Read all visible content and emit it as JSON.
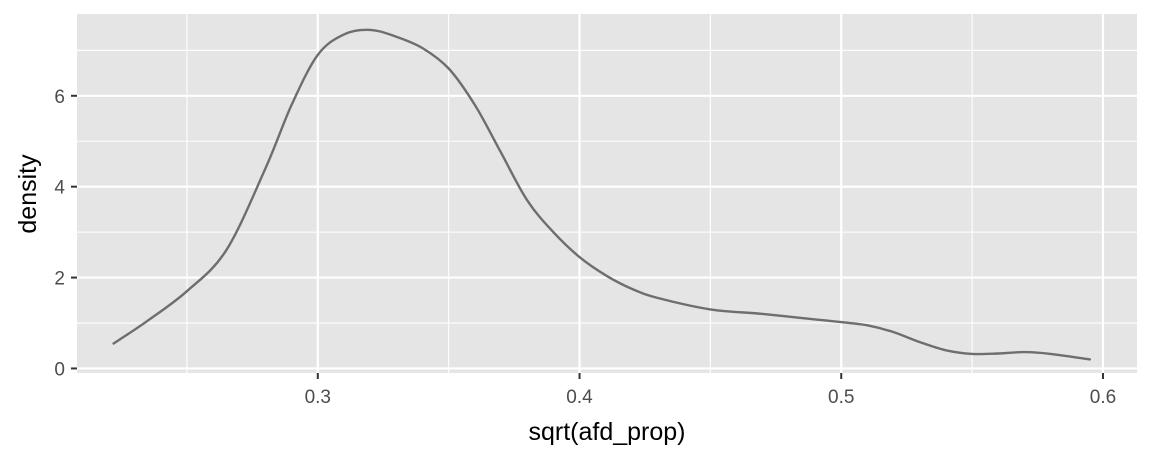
{
  "chart_data": {
    "type": "line",
    "title": "",
    "xlabel": "sqrt(afd_prop)",
    "ylabel": "density",
    "xlim": [
      0.208,
      0.613
    ],
    "ylim": [
      -0.1,
      7.8
    ],
    "x_ticks": [
      0.3,
      0.4,
      0.5,
      0.6
    ],
    "x_minor_ticks": [
      0.25,
      0.35,
      0.45,
      0.55
    ],
    "y_ticks": [
      0,
      2,
      4,
      6
    ],
    "y_minor_ticks": [
      1,
      3,
      5,
      7
    ],
    "x_tick_labels": [
      "0.3",
      "0.4",
      "0.5",
      "0.6"
    ],
    "y_tick_labels": [
      "0",
      "2",
      "4",
      "6"
    ],
    "grid": true,
    "legend": "none",
    "colors": {
      "panel": "#e5e5e5",
      "grid": "#ffffff",
      "line": "#6e6e6e"
    },
    "series": [
      {
        "x": [
          0.222,
          0.235,
          0.25,
          0.265,
          0.28,
          0.29,
          0.3,
          0.31,
          0.32,
          0.33,
          0.34,
          0.35,
          0.36,
          0.37,
          0.38,
          0.39,
          0.4,
          0.41,
          0.42,
          0.43,
          0.45,
          0.47,
          0.49,
          0.5,
          0.51,
          0.52,
          0.53,
          0.54,
          0.55,
          0.56,
          0.57,
          0.58,
          0.595
        ],
        "y": [
          0.55,
          1.05,
          1.7,
          2.6,
          4.4,
          5.8,
          6.9,
          7.35,
          7.45,
          7.3,
          7.05,
          6.6,
          5.8,
          4.75,
          3.7,
          3.0,
          2.45,
          2.05,
          1.75,
          1.55,
          1.3,
          1.2,
          1.08,
          1.02,
          0.95,
          0.8,
          0.58,
          0.4,
          0.32,
          0.33,
          0.36,
          0.32,
          0.2
        ]
      }
    ]
  }
}
